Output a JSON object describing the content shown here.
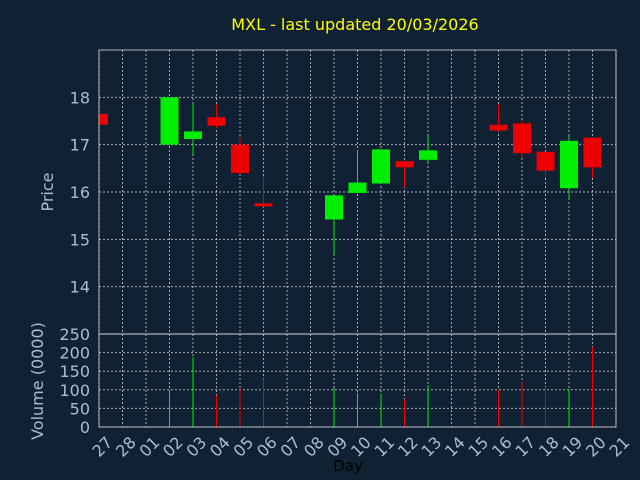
{
  "chart_data": {
    "type": "candlestick",
    "title": "MXL - last updated 20/03/2026",
    "xlabel": "Day",
    "colors": {
      "up": "#00ee00",
      "down": "#ee0000",
      "background": "#0f2133",
      "title": "#ffff00",
      "ticks": "#a9bed3"
    },
    "price_axis": {
      "label": "Price",
      "ylim": [
        13,
        19
      ],
      "ticks": [
        14,
        15,
        16,
        17,
        18
      ]
    },
    "volume_axis": {
      "label": "Volume (0000)",
      "ylim": [
        0,
        250
      ],
      "ticks": [
        0,
        50,
        100,
        150,
        200,
        250
      ]
    },
    "day_labels": [
      "27",
      "28",
      "01",
      "02",
      "03",
      "04",
      "05",
      "06",
      "07",
      "08",
      "09",
      "10",
      "11",
      "12",
      "13",
      "14",
      "15",
      "16",
      "17",
      "18",
      "19",
      "20",
      "21"
    ],
    "candles": [
      {
        "day": "27",
        "open": 17.65,
        "close": 17.42,
        "high": 17.65,
        "low": 17.42,
        "volume": 0
      },
      {
        "day": "02",
        "open": 17.0,
        "close": 18.0,
        "high": 18.0,
        "low": 17.0,
        "volume": 98
      },
      {
        "day": "03",
        "open": 17.12,
        "close": 17.28,
        "high": 17.88,
        "low": 16.8,
        "volume": 188
      },
      {
        "day": "04",
        "open": 17.58,
        "close": 17.4,
        "high": 17.85,
        "low": 17.35,
        "volume": 85
      },
      {
        "day": "05",
        "open": 17.0,
        "close": 16.4,
        "high": 17.15,
        "low": 16.4,
        "volume": 105
      },
      {
        "day": "06",
        "open": 15.76,
        "close": 15.7,
        "high": 16.32,
        "low": 15.68,
        "volume": 130
      },
      {
        "day": "09",
        "open": 15.42,
        "close": 15.93,
        "high": 15.93,
        "low": 14.68,
        "volume": 105
      },
      {
        "day": "10",
        "open": 15.98,
        "close": 16.2,
        "high": 16.88,
        "low": 15.98,
        "volume": 92
      },
      {
        "day": "11",
        "open": 16.18,
        "close": 16.9,
        "high": 16.9,
        "low": 16.18,
        "volume": 90
      },
      {
        "day": "12",
        "open": 16.65,
        "close": 16.52,
        "high": 16.65,
        "low": 16.1,
        "volume": 75
      },
      {
        "day": "13",
        "open": 16.68,
        "close": 16.88,
        "high": 17.2,
        "low": 16.62,
        "volume": 112
      },
      {
        "day": "16",
        "open": 17.42,
        "close": 17.3,
        "high": 17.85,
        "low": 17.28,
        "volume": 100
      },
      {
        "day": "17",
        "open": 17.45,
        "close": 16.82,
        "high": 17.52,
        "low": 16.72,
        "volume": 122
      },
      {
        "day": "18",
        "open": 16.85,
        "close": 16.45,
        "high": 16.85,
        "low": 16.3,
        "volume": 108
      },
      {
        "day": "19",
        "open": 16.08,
        "close": 17.08,
        "high": 17.2,
        "low": 15.85,
        "volume": 102
      },
      {
        "day": "20",
        "open": 17.15,
        "close": 16.52,
        "high": 17.15,
        "low": 16.3,
        "volume": 215
      }
    ]
  }
}
